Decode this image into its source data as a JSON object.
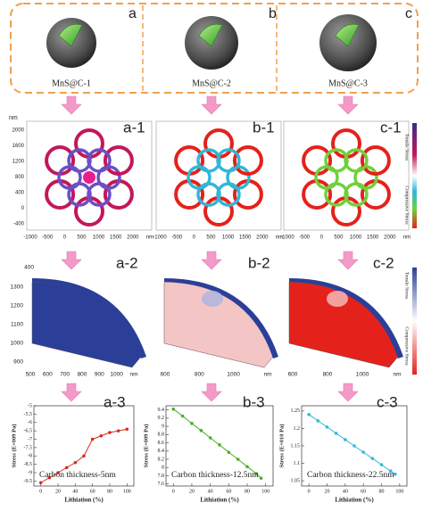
{
  "top": {
    "labels": [
      "a",
      "b",
      "c"
    ],
    "captions": [
      "MnS@C-1",
      "MnS@C-2",
      "MnS@C-3"
    ]
  },
  "contour": {
    "labels": [
      "a-1",
      "b-1",
      "c-1"
    ],
    "y_unit": "nm",
    "yticks": [
      "2000",
      "1600",
      "1200",
      "800",
      "400",
      "0",
      "-400"
    ],
    "xticks": [
      "-1000",
      "-500",
      "0",
      "500",
      "1000",
      "1500",
      "2000",
      "nm"
    ],
    "colorbar": [
      "Tensile Stress",
      "Compressive Stress"
    ]
  },
  "surface": {
    "labels": [
      "a-2",
      "b-2",
      "c-2"
    ],
    "a_yticks": [
      "400",
      "1300",
      "1200",
      "1100",
      "1000",
      "900"
    ],
    "a_xticks": [
      "500",
      "600",
      "700",
      "800",
      "900",
      "1000",
      "nm"
    ],
    "b_xticks": [
      "600",
      "800",
      "1000",
      "nm"
    ],
    "c_xticks": [
      "600",
      "800",
      "1000",
      "nm"
    ],
    "colorbar": [
      "Tensile Stress",
      "Compressive Stress"
    ]
  },
  "chart_data": [
    {
      "type": "line",
      "label": "a-3",
      "annotation": "Carbon thickness-5nm",
      "x_label": "Lithiation (%)",
      "y_label": "Stress (E+009 Pa)",
      "x": [
        0,
        10,
        20,
        30,
        40,
        50,
        60,
        70,
        80,
        90,
        100
      ],
      "series": [
        {
          "color": "#d62b1f",
          "values": [
            -9.6,
            -9.3,
            -9.0,
            -8.7,
            -8.4,
            -8.0,
            -7.0,
            -6.8,
            -6.6,
            -6.5,
            -6.4
          ]
        }
      ],
      "xlim": [
        -8,
        108
      ],
      "xticks": [
        0,
        20,
        40,
        60,
        80,
        100
      ],
      "ylim": [
        -9.8,
        -5
      ],
      "yticks": [
        -5,
        -5.5,
        -6,
        -6.5,
        -7,
        -7.5,
        -8,
        -8.5,
        -9,
        -9.5
      ]
    },
    {
      "type": "line",
      "label": "b-3",
      "annotation": "Carbon thickness-12.5nm",
      "x_label": "Lithiation (%)",
      "y_label": "Stress (E+009 Pa)",
      "x": [
        0,
        10,
        20,
        30,
        40,
        50,
        60,
        70,
        80,
        90,
        95
      ],
      "series": [
        {
          "color": "#4caf2a",
          "values": [
            9.42,
            9.25,
            9.07,
            8.9,
            8.72,
            8.55,
            8.37,
            8.2,
            8.02,
            7.85,
            7.74
          ]
        }
      ],
      "xlim": [
        -8,
        108
      ],
      "xticks": [
        0,
        20,
        40,
        60,
        80,
        100
      ],
      "ylim": [
        7.55,
        9.5
      ],
      "yticks": [
        7.6,
        7.8,
        8,
        8.2,
        8.4,
        8.6,
        8.8,
        9,
        9.2,
        9.4
      ]
    },
    {
      "type": "line",
      "label": "c-3",
      "annotation": "Carbon thickness-22.5nm",
      "x_label": "Lithiation (%)",
      "y_label": "Stress (E+010 Pa)",
      "x": [
        0,
        10,
        20,
        30,
        40,
        50,
        60,
        70,
        80,
        90,
        95
      ],
      "series": [
        {
          "color": "#35b8d8",
          "values": [
            1.24,
            1.222,
            1.204,
            1.186,
            1.168,
            1.15,
            1.132,
            1.114,
            1.096,
            1.078,
            1.069
          ]
        }
      ],
      "xlim": [
        -8,
        108
      ],
      "xticks": [
        0,
        20,
        40,
        60,
        80,
        100
      ],
      "ylim": [
        1.035,
        1.265
      ],
      "yticks": [
        1.05,
        1.1,
        1.15,
        1.2,
        1.25
      ]
    }
  ]
}
